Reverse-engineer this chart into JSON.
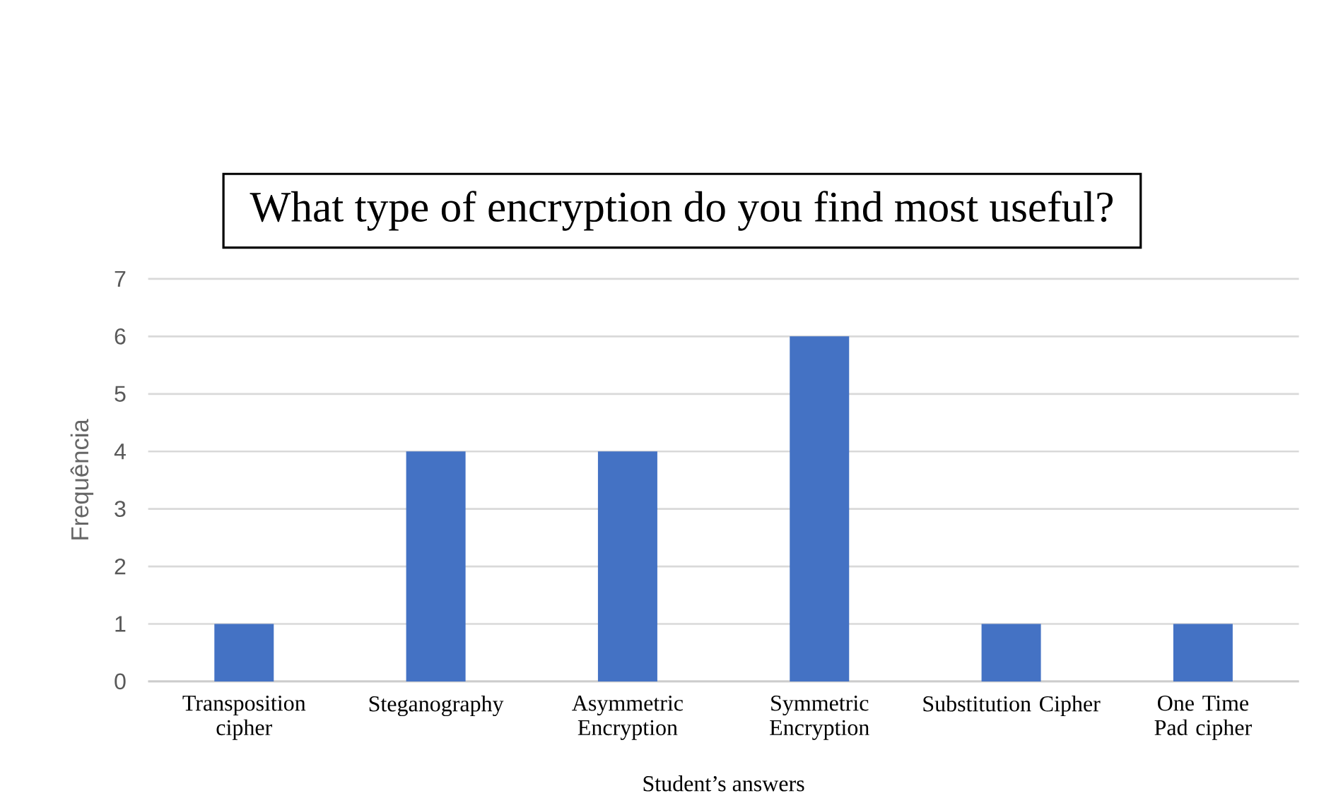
{
  "chart_data": {
    "type": "bar",
    "title": "What type of encryption do you find most useful?",
    "xlabel": "Student’s answers",
    "ylabel": "Frequência",
    "categories": [
      "Transposition cipher",
      "Steganography",
      "Asymmetric Encryption",
      "Symmetric Encryption",
      "Substitution Cipher",
      "One Time Pad cipher"
    ],
    "values": [
      1,
      4,
      4,
      6,
      1,
      1
    ],
    "color": "#4472c4",
    "ylim": [
      0,
      7
    ],
    "yticks": [
      0,
      1,
      2,
      3,
      4,
      5,
      6,
      7
    ],
    "grid": "y"
  }
}
